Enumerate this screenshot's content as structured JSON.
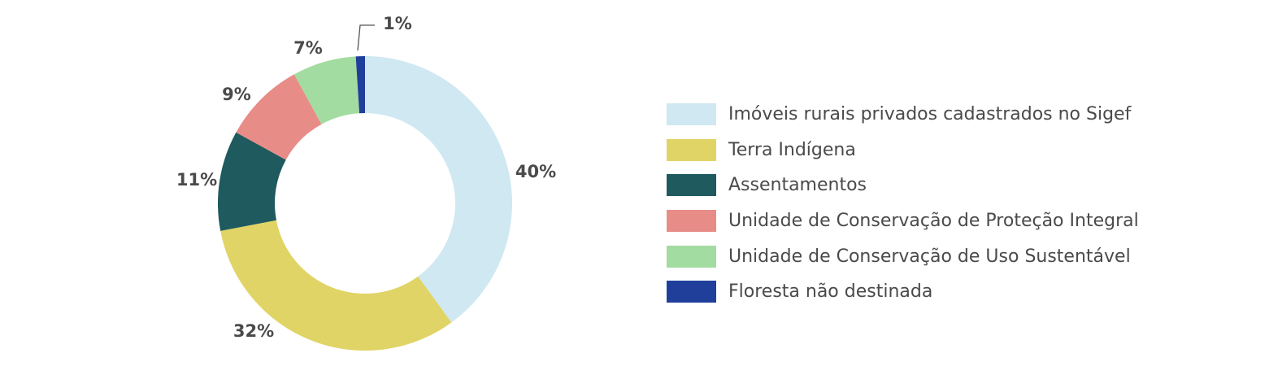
{
  "chart_data": {
    "type": "pie",
    "donut": true,
    "legend_position": "right",
    "slices": [
      {
        "name": "Imóveis rurais privados cadastrados no Sigef",
        "value": 40,
        "label": "40%",
        "color": "#cfe8f1"
      },
      {
        "name": "Terra Indígena",
        "value": 32,
        "label": "32%",
        "color": "#e0d466"
      },
      {
        "name": "Assentamentos",
        "value": 11,
        "label": "11%",
        "color": "#1e5a5e"
      },
      {
        "name": "Unidade de Conservação de Proteção Integral",
        "value": 9,
        "label": "9%",
        "color": "#e88c88"
      },
      {
        "name": "Unidade de Conservação de Uso Sustentável",
        "value": 7,
        "label": "7%",
        "color": "#a2dca0"
      },
      {
        "name": "Floresta não destinada",
        "value": 1,
        "label": "1%",
        "color": "#1f3f9b"
      }
    ]
  }
}
